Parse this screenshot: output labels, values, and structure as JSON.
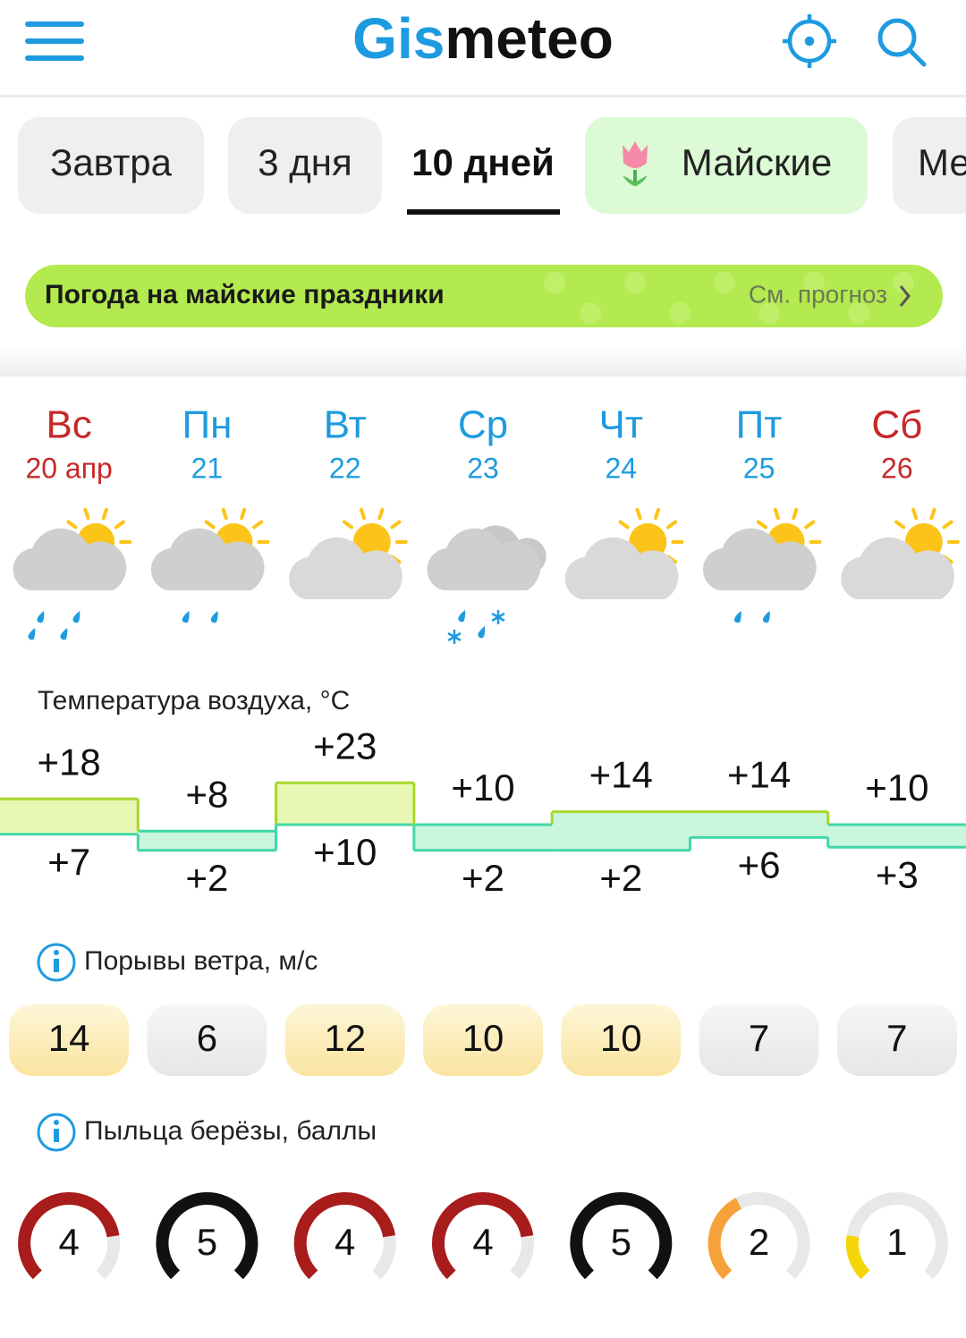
{
  "header": {
    "logo": [
      "Gis",
      "meteo"
    ]
  },
  "tabs": [
    "Завтра",
    "3 дня",
    "10 дней",
    "Майские",
    "Ме"
  ],
  "banner": {
    "title": "Погода на майские праздники",
    "link": "См. прогноз"
  },
  "days": [
    {
      "weekday": "Вс",
      "date": "20 апр",
      "weekend": true,
      "sun": true,
      "precip": "rain-heavy"
    },
    {
      "weekday": "Пн",
      "date": "21",
      "weekend": false,
      "sun": true,
      "precip": "rain"
    },
    {
      "weekday": "Вт",
      "date": "22",
      "weekend": false,
      "sun": true,
      "precip": "none"
    },
    {
      "weekday": "Ср",
      "date": "23",
      "weekend": false,
      "sun": false,
      "precip": "rain-snow"
    },
    {
      "weekday": "Чт",
      "date": "24",
      "weekend": false,
      "sun": true,
      "precip": "none"
    },
    {
      "weekday": "Пт",
      "date": "25",
      "weekend": false,
      "sun": true,
      "precip": "rain"
    },
    {
      "weekday": "Сб",
      "date": "26",
      "weekend": true,
      "sun": true,
      "precip": "none"
    }
  ],
  "temperature": {
    "label": "Температура воздуха, °C",
    "max": [
      18,
      8,
      23,
      10,
      14,
      14,
      10
    ],
    "max_labels": [
      "+18",
      "+8",
      "+23",
      "+10",
      "+14",
      "+14",
      "+10"
    ],
    "min": [
      7,
      2,
      10,
      2,
      2,
      6,
      3
    ],
    "min_labels": [
      "+7",
      "+2",
      "+10",
      "+2",
      "+2",
      "+6",
      "+3"
    ]
  },
  "wind": {
    "label": "Порывы ветра, м/с",
    "values": [
      14,
      6,
      12,
      10,
      10,
      7,
      7
    ]
  },
  "pollen": {
    "label": "Пыльца берёзы, баллы",
    "values": [
      4,
      5,
      4,
      4,
      5,
      2,
      1
    ],
    "max": 5
  }
}
